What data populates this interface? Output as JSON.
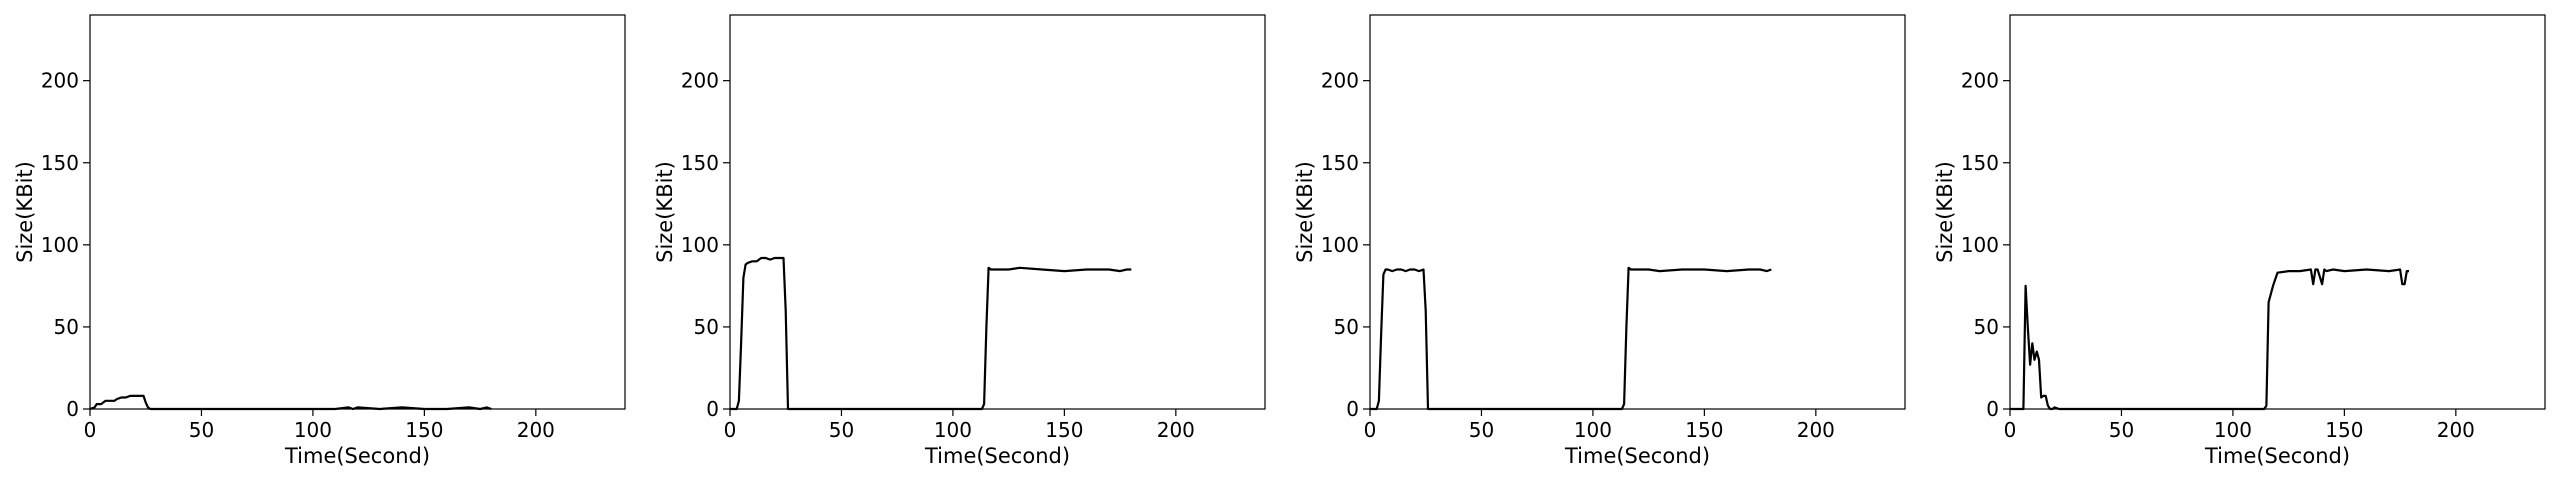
{
  "chart_data": [
    {
      "type": "line",
      "xlabel": "Time(Second)",
      "ylabel": "Size(KBit)",
      "xlim": [
        0,
        240
      ],
      "ylim": [
        0,
        240
      ],
      "xticks": [
        0,
        50,
        100,
        150,
        200
      ],
      "yticks": [
        0,
        50,
        100,
        150,
        200
      ],
      "grid": false,
      "colors": {
        "line": "#000000",
        "axis": "#000000"
      },
      "series": [
        {
          "x": [
            0,
            2,
            3,
            5,
            7,
            9,
            11,
            12,
            14,
            16,
            18,
            20,
            22,
            24,
            25,
            26,
            27,
            30,
            40,
            50,
            60,
            70,
            80,
            90,
            100,
            110,
            116,
            118,
            120,
            130,
            140,
            150,
            160,
            170,
            175,
            178,
            180
          ],
          "y": [
            0,
            1,
            3,
            3,
            5,
            5,
            5,
            6,
            7,
            7,
            8,
            8,
            8,
            8,
            4,
            1,
            0,
            0,
            0,
            0,
            0,
            0,
            0,
            0,
            0,
            0,
            1,
            0,
            1,
            0,
            1,
            0,
            0,
            1,
            0,
            1,
            0
          ]
        }
      ]
    },
    {
      "type": "line",
      "xlabel": "Time(Second)",
      "ylabel": "Size(KBit)",
      "xlim": [
        0,
        240
      ],
      "ylim": [
        0,
        240
      ],
      "xticks": [
        0,
        50,
        100,
        150,
        200
      ],
      "yticks": [
        0,
        50,
        100,
        150,
        200
      ],
      "grid": false,
      "colors": {
        "line": "#000000",
        "axis": "#000000"
      },
      "series": [
        {
          "x": [
            0,
            3,
            4,
            5,
            6,
            7,
            8,
            10,
            12,
            14,
            16,
            18,
            20,
            22,
            24,
            25,
            26,
            27,
            30,
            40,
            50,
            60,
            70,
            80,
            90,
            100,
            110,
            113,
            114,
            115,
            116,
            117,
            120,
            125,
            130,
            140,
            150,
            160,
            170,
            175,
            178,
            180
          ],
          "y": [
            0,
            0,
            5,
            40,
            80,
            88,
            89,
            90,
            90,
            92,
            92,
            91,
            92,
            92,
            92,
            60,
            0,
            0,
            0,
            0,
            0,
            0,
            0,
            0,
            0,
            0,
            0,
            0,
            3,
            50,
            86,
            85,
            85,
            85,
            86,
            85,
            84,
            85,
            85,
            84,
            85,
            85
          ]
        }
      ]
    },
    {
      "type": "line",
      "xlabel": "Time(Second)",
      "ylabel": "Size(KBit)",
      "xlim": [
        0,
        240
      ],
      "ylim": [
        0,
        240
      ],
      "xticks": [
        0,
        50,
        100,
        150,
        200
      ],
      "yticks": [
        0,
        50,
        100,
        150,
        200
      ],
      "grid": false,
      "colors": {
        "line": "#000000",
        "axis": "#000000"
      },
      "series": [
        {
          "x": [
            0,
            3,
            4,
            5,
            6,
            7,
            8,
            10,
            12,
            14,
            16,
            18,
            20,
            22,
            24,
            25,
            26,
            27,
            30,
            40,
            50,
            60,
            70,
            80,
            90,
            100,
            110,
            113,
            114,
            115,
            116,
            117,
            120,
            125,
            130,
            140,
            150,
            160,
            170,
            175,
            178,
            180
          ],
          "y": [
            0,
            0,
            5,
            45,
            82,
            85,
            85,
            84,
            85,
            85,
            84,
            85,
            85,
            84,
            85,
            60,
            0,
            0,
            0,
            0,
            0,
            0,
            0,
            0,
            0,
            0,
            0,
            0,
            3,
            50,
            86,
            85,
            85,
            85,
            84,
            85,
            85,
            84,
            85,
            85,
            84,
            85
          ]
        }
      ]
    },
    {
      "type": "line",
      "xlabel": "Time(Second)",
      "ylabel": "Size(KBit)",
      "xlim": [
        0,
        240
      ],
      "ylim": [
        0,
        240
      ],
      "xticks": [
        0,
        50,
        100,
        150,
        200
      ],
      "yticks": [
        0,
        50,
        100,
        150,
        200
      ],
      "grid": false,
      "colors": {
        "line": "#000000",
        "axis": "#000000"
      },
      "series": [
        {
          "x": [
            0,
            6,
            7,
            8,
            9,
            10,
            11,
            12,
            13,
            14,
            15,
            16,
            17,
            18,
            19,
            20,
            22,
            30,
            50,
            80,
            100,
            110,
            113,
            114,
            115,
            116,
            118,
            120,
            125,
            130,
            135,
            136,
            137,
            138,
            140,
            141,
            142,
            145,
            150,
            160,
            170,
            175,
            176,
            177,
            178,
            179
          ],
          "y": [
            0,
            0,
            75,
            50,
            27,
            40,
            30,
            35,
            30,
            7,
            8,
            8,
            2,
            0,
            0,
            1,
            0,
            0,
            0,
            0,
            0,
            0,
            0,
            0,
            2,
            65,
            75,
            83,
            84,
            84,
            85,
            76,
            85,
            85,
            76,
            85,
            84,
            85,
            84,
            85,
            84,
            85,
            76,
            76,
            84,
            84
          ]
        }
      ]
    }
  ]
}
